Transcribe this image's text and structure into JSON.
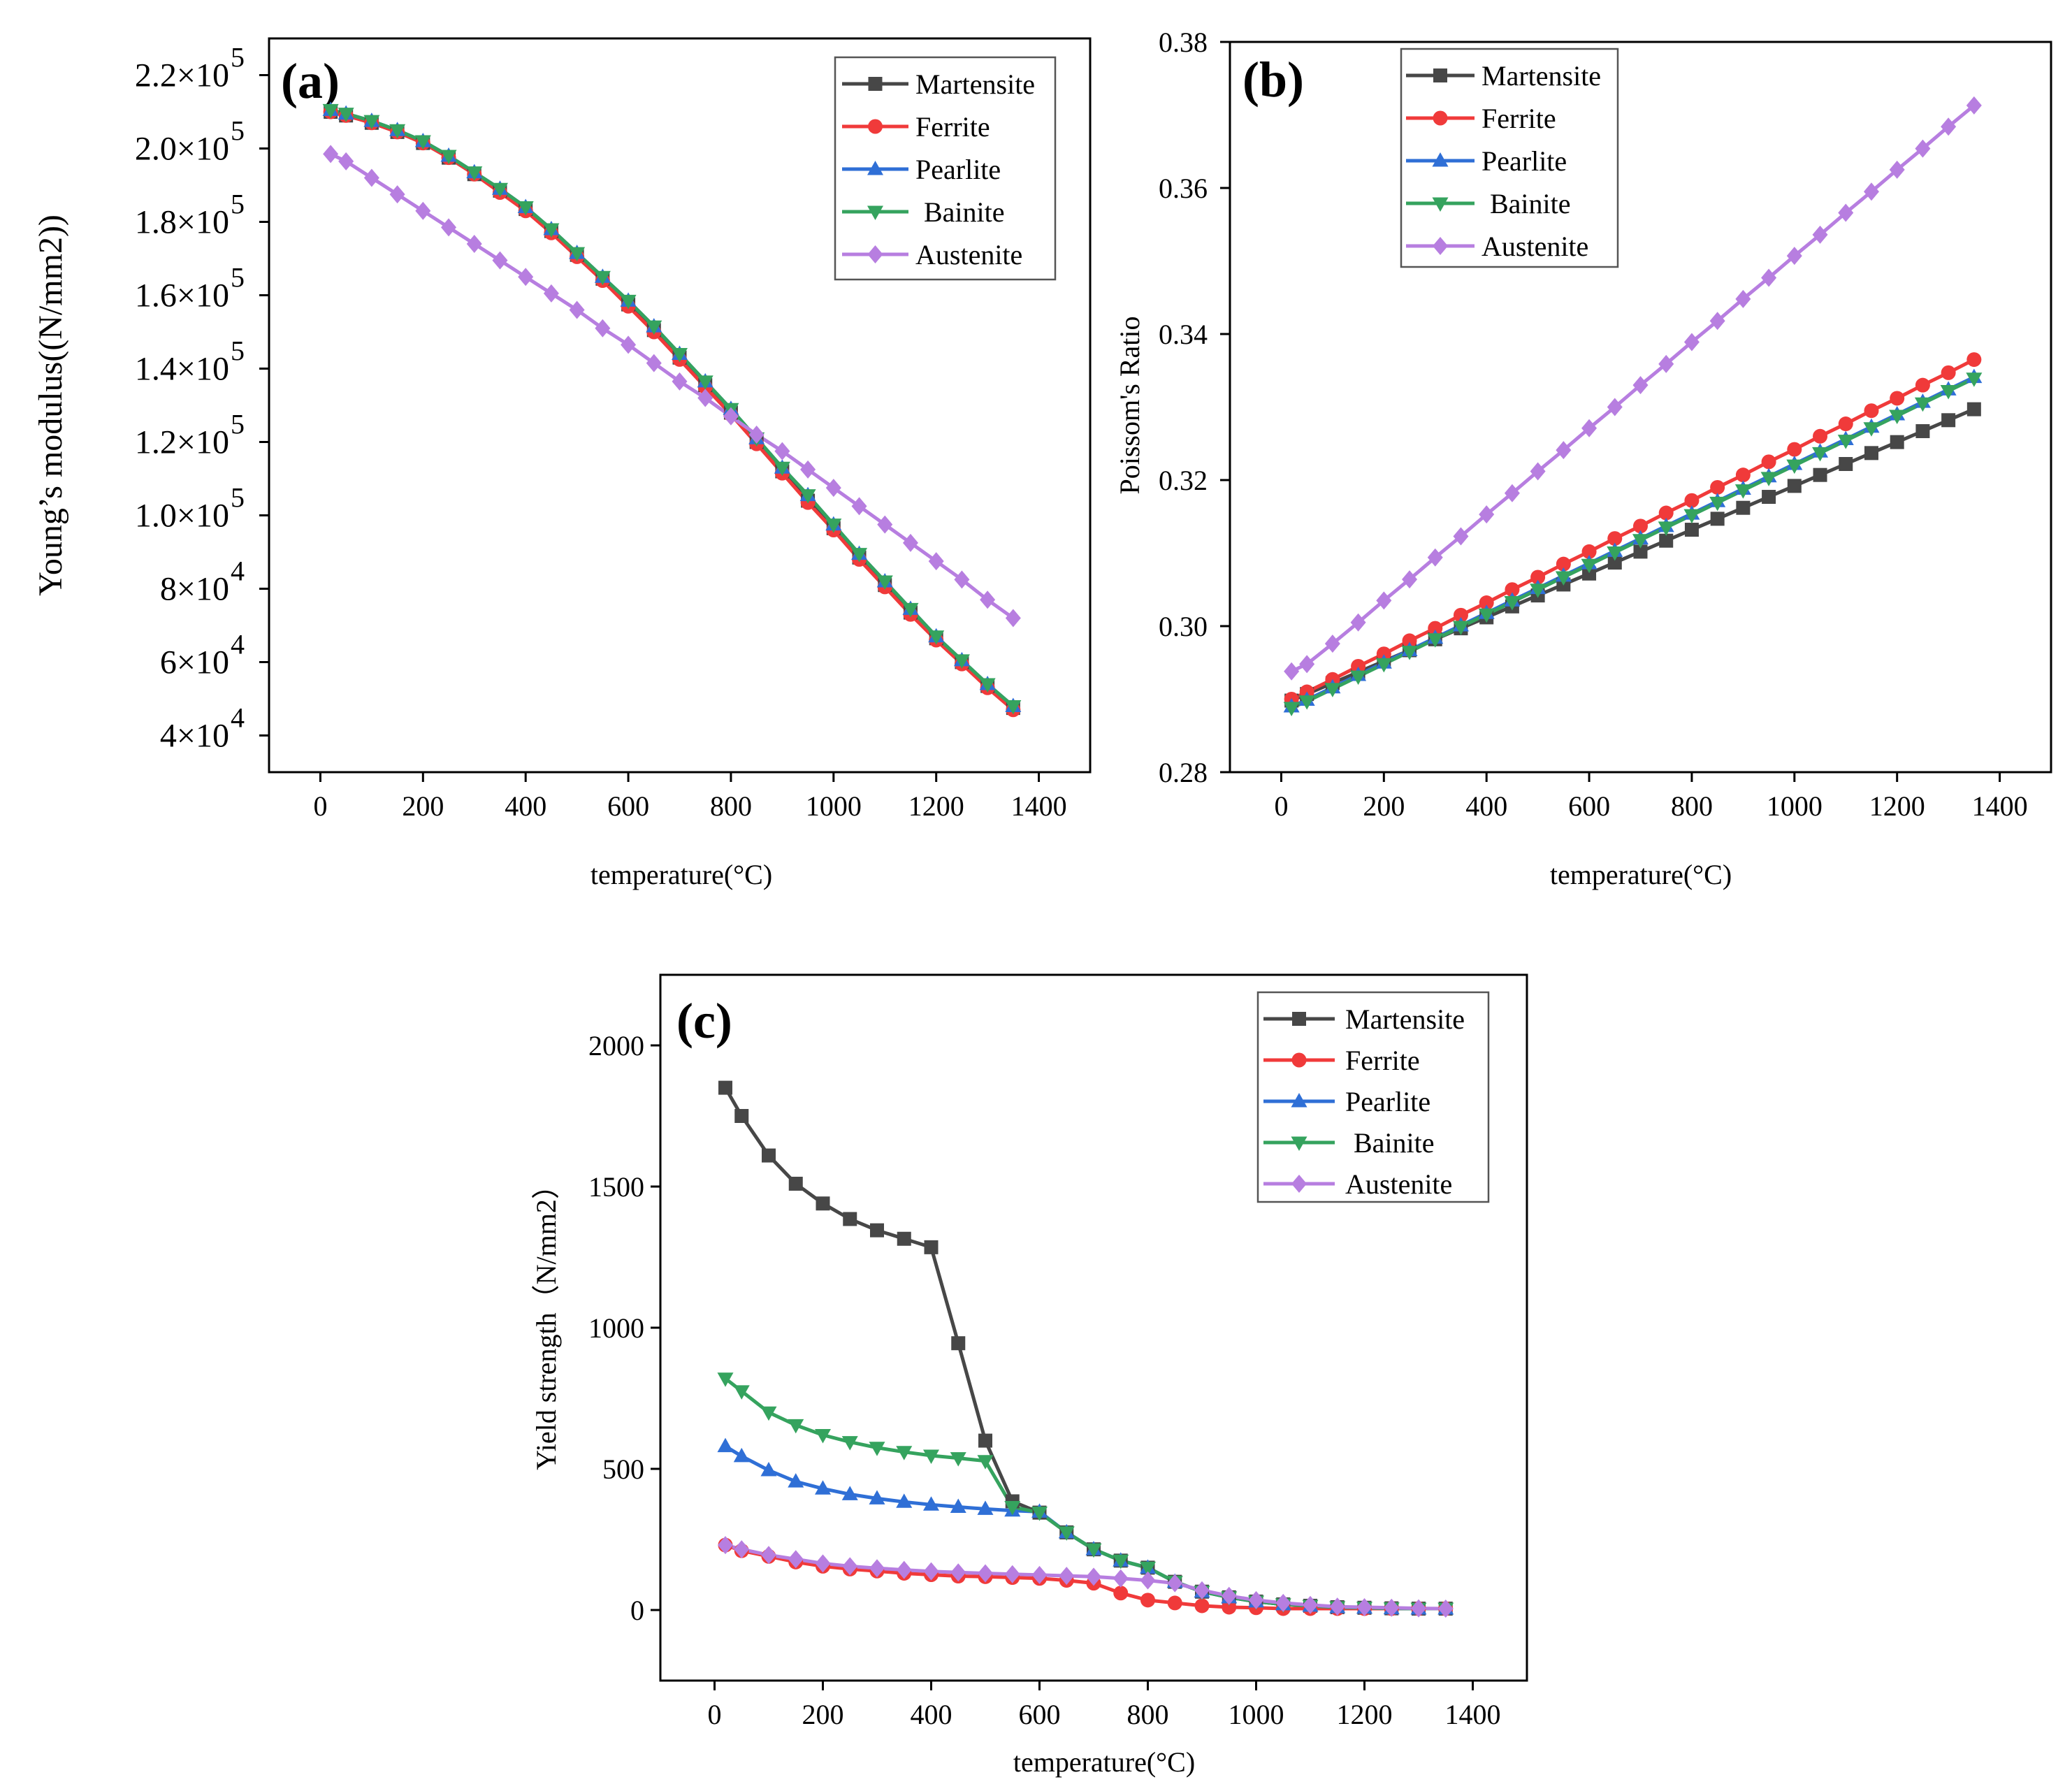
{
  "colors": {
    "Martensite": "#474747",
    "Ferrite": "#f03a3a",
    "Pearlite": "#2f6fd6",
    "Bainite": "#35a35e",
    "Austenite": "#b77ee0"
  },
  "markers": {
    "Martensite": "square",
    "Ferrite": "circle",
    "Pearlite": "triangle-up",
    "Bainite": "triangle-down",
    "Austenite": "diamond"
  },
  "chart_data": [
    {
      "panel": "(a)",
      "type": "line",
      "title": "",
      "xlabel": "temperature(°C)",
      "ylabel": "Young’s modulus((N/mm2))",
      "xlim": [
        -100,
        1500
      ],
      "ylim": [
        30000,
        230000
      ],
      "xticks": [
        0,
        200,
        400,
        600,
        800,
        1000,
        1200,
        1400
      ],
      "xtick_labels": [
        "0",
        "200",
        "400",
        "600",
        "800",
        "1000",
        "1200",
        "1400"
      ],
      "yticks": [
        40000,
        60000,
        80000,
        100000,
        120000,
        140000,
        160000,
        180000,
        200000,
        220000
      ],
      "ytick_mantissa": [
        "4×10",
        "6×10",
        "8×10",
        "1.0×10",
        "1.2×10",
        "1.4×10",
        "1.6×10",
        "1.8×10",
        "2.0×10",
        "2.2×10"
      ],
      "ytick_exponent": [
        "4",
        "4",
        "4",
        "5",
        "5",
        "5",
        "5",
        "5",
        "5",
        "5"
      ],
      "legend": [
        "Martensite",
        "Ferrite",
        "Pearlite",
        "Bainite",
        "Austenite"
      ],
      "legend_position": "top-right",
      "x": [
        20,
        50,
        100,
        150,
        200,
        250,
        300,
        350,
        400,
        450,
        500,
        550,
        600,
        650,
        700,
        750,
        800,
        850,
        900,
        950,
        1000,
        1050,
        1100,
        1150,
        1200,
        1250,
        1300,
        1350
      ],
      "series": [
        {
          "name": "Martensite",
          "values": [
            210000,
            209000,
            207000,
            204500,
            201500,
            197500,
            193000,
            188500,
            183500,
            177500,
            171000,
            164500,
            157500,
            150500,
            143000,
            135500,
            128000,
            120000,
            112000,
            104000,
            96500,
            88500,
            81000,
            73500,
            66500,
            60000,
            53500,
            47500
          ]
        },
        {
          "name": "Ferrite",
          "values": [
            210000,
            209000,
            207000,
            204500,
            201500,
            197500,
            193000,
            188000,
            183000,
            177000,
            170500,
            164000,
            157000,
            150000,
            142500,
            135000,
            127500,
            119500,
            111500,
            103500,
            96000,
            88000,
            80500,
            73000,
            66000,
            59500,
            53000,
            47000
          ]
        },
        {
          "name": "Pearlite",
          "values": [
            210500,
            209500,
            207500,
            205000,
            202000,
            198000,
            193500,
            189000,
            184000,
            178000,
            171500,
            165000,
            158500,
            151500,
            144000,
            136500,
            129000,
            121000,
            113000,
            105500,
            97500,
            89500,
            82000,
            74500,
            67000,
            60500,
            54000,
            48000
          ]
        },
        {
          "name": "Bainite",
          "values": [
            210500,
            209500,
            207500,
            205000,
            202000,
            198000,
            193500,
            189000,
            184000,
            178000,
            171500,
            165000,
            158500,
            151500,
            144000,
            136500,
            129000,
            121000,
            113000,
            105500,
            97500,
            89500,
            82000,
            74500,
            67000,
            60500,
            54000,
            48000
          ]
        },
        {
          "name": "Austenite",
          "values": [
            198500,
            196500,
            192000,
            187500,
            183000,
            178500,
            174000,
            169500,
            165000,
            160500,
            156000,
            151000,
            146500,
            141500,
            136500,
            132000,
            127000,
            122000,
            117500,
            112500,
            107500,
            102500,
            97500,
            92500,
            87500,
            82500,
            77000,
            72000
          ]
        }
      ]
    },
    {
      "panel": "(b)",
      "type": "line",
      "title": "",
      "xlabel": "temperature(°C)",
      "ylabel": "Poissom's Ratio",
      "xlim": [
        -100,
        1500
      ],
      "ylim": [
        0.28,
        0.38
      ],
      "xticks": [
        0,
        200,
        400,
        600,
        800,
        1000,
        1200,
        1400
      ],
      "xtick_labels": [
        "0",
        "200",
        "400",
        "600",
        "800",
        "1000",
        "1200",
        "1400"
      ],
      "yticks": [
        0.28,
        0.3,
        0.32,
        0.34,
        0.36,
        0.38
      ],
      "ytick_labels": [
        "0.28",
        "0.30",
        "0.32",
        "0.34",
        "0.36",
        "0.38"
      ],
      "legend": [
        "Martensite",
        "Ferrite",
        "Pearlite",
        "Bainite",
        "Austenite"
      ],
      "legend_position": "top-left",
      "x": [
        20,
        50,
        100,
        150,
        200,
        250,
        300,
        350,
        400,
        450,
        500,
        550,
        600,
        650,
        700,
        750,
        800,
        850,
        900,
        950,
        1000,
        1050,
        1100,
        1150,
        1200,
        1250,
        1300,
        1350
      ],
      "series": [
        {
          "name": "Martensite",
          "values": [
            0.2898,
            0.2907,
            0.2922,
            0.2937,
            0.2952,
            0.2967,
            0.2982,
            0.2997,
            0.3012,
            0.3027,
            0.3042,
            0.3057,
            0.3072,
            0.3087,
            0.3102,
            0.3117,
            0.3132,
            0.3147,
            0.3162,
            0.3177,
            0.3192,
            0.3207,
            0.3222,
            0.3237,
            0.3252,
            0.3267,
            0.3282,
            0.3297
          ]
        },
        {
          "name": "Ferrite",
          "values": [
            0.29,
            0.291,
            0.2927,
            0.2945,
            0.2962,
            0.298,
            0.2997,
            0.3015,
            0.3032,
            0.305,
            0.3067,
            0.3085,
            0.3102,
            0.312,
            0.3137,
            0.3155,
            0.3172,
            0.319,
            0.3207,
            0.3225,
            0.3242,
            0.326,
            0.3277,
            0.3295,
            0.3312,
            0.333,
            0.3347,
            0.3365
          ]
        },
        {
          "name": "Pearlite",
          "values": [
            0.289,
            0.2899,
            0.2916,
            0.2933,
            0.295,
            0.2967,
            0.2984,
            0.3001,
            0.3018,
            0.3035,
            0.3052,
            0.3069,
            0.3086,
            0.3103,
            0.312,
            0.3137,
            0.3154,
            0.3171,
            0.3188,
            0.3205,
            0.3222,
            0.3239,
            0.3256,
            0.3273,
            0.329,
            0.3307,
            0.3324,
            0.3341
          ]
        },
        {
          "name": "Bainite",
          "values": [
            0.2888,
            0.2897,
            0.2914,
            0.2931,
            0.2948,
            0.2965,
            0.2982,
            0.2999,
            0.3016,
            0.3033,
            0.305,
            0.3067,
            0.3084,
            0.3101,
            0.3118,
            0.3135,
            0.3152,
            0.3169,
            0.3186,
            0.3203,
            0.322,
            0.3237,
            0.3254,
            0.3271,
            0.3288,
            0.3305,
            0.3322,
            0.3339
          ]
        },
        {
          "name": "Austenite",
          "values": [
            0.2938,
            0.2948,
            0.2976,
            0.3005,
            0.3035,
            0.3064,
            0.3094,
            0.3123,
            0.3153,
            0.3182,
            0.3212,
            0.3241,
            0.3271,
            0.33,
            0.333,
            0.3359,
            0.3389,
            0.3418,
            0.3448,
            0.3477,
            0.3507,
            0.3536,
            0.3566,
            0.3595,
            0.3625,
            0.3654,
            0.3684,
            0.3713
          ]
        }
      ]
    },
    {
      "panel": "(c)",
      "type": "line",
      "title": "",
      "xlabel": "temperature(°C)",
      "ylabel": "Yield strength（N/mm2）",
      "xlim": [
        -100,
        1500
      ],
      "ylim": [
        -250,
        2250
      ],
      "xticks": [
        0,
        200,
        400,
        600,
        800,
        1000,
        1200,
        1400
      ],
      "xtick_labels": [
        "0",
        "200",
        "400",
        "600",
        "800",
        "1000",
        "1200",
        "1400"
      ],
      "yticks": [
        0,
        500,
        1000,
        1500,
        2000
      ],
      "ytick_labels": [
        "0",
        "500",
        "1000",
        "1500",
        "2000"
      ],
      "legend": [
        "Martensite",
        "Ferrite",
        "Pearlite",
        "Bainite",
        "Austenite"
      ],
      "legend_position": "top-right",
      "x": [
        20,
        50,
        100,
        150,
        200,
        250,
        300,
        350,
        400,
        450,
        500,
        550,
        600,
        650,
        700,
        750,
        800,
        850,
        900,
        950,
        1000,
        1050,
        1100,
        1150,
        1200,
        1250,
        1300,
        1350
      ],
      "series": [
        {
          "name": "Martensite",
          "values": [
            1850,
            1750,
            1610,
            1510,
            1440,
            1385,
            1345,
            1315,
            1285,
            945,
            600,
            385,
            345,
            275,
            215,
            175,
            150,
            100,
            65,
            45,
            30,
            20,
            15,
            10,
            8,
            6,
            5,
            5
          ]
        },
        {
          "name": "Ferrite",
          "values": [
            230,
            210,
            190,
            170,
            155,
            145,
            138,
            130,
            125,
            120,
            118,
            115,
            112,
            105,
            95,
            60,
            35,
            25,
            15,
            10,
            8,
            5,
            5,
            5,
            5,
            5,
            5,
            5
          ]
        },
        {
          "name": "Pearlite",
          "values": [
            580,
            545,
            495,
            455,
            430,
            410,
            395,
            383,
            373,
            365,
            358,
            352,
            348,
            275,
            215,
            175,
            150,
            100,
            65,
            45,
            30,
            20,
            15,
            10,
            8,
            6,
            5,
            5
          ]
        },
        {
          "name": "Bainite",
          "values": [
            820,
            775,
            700,
            655,
            620,
            595,
            575,
            560,
            547,
            538,
            528,
            365,
            345,
            275,
            215,
            175,
            150,
            100,
            65,
            45,
            30,
            20,
            15,
            10,
            8,
            6,
            5,
            5
          ]
        },
        {
          "name": "Austenite",
          "values": [
            230,
            215,
            195,
            180,
            165,
            155,
            148,
            142,
            137,
            133,
            130,
            127,
            124,
            121,
            118,
            112,
            105,
            95,
            70,
            50,
            35,
            25,
            18,
            12,
            10,
            8,
            6,
            5
          ]
        }
      ]
    }
  ]
}
